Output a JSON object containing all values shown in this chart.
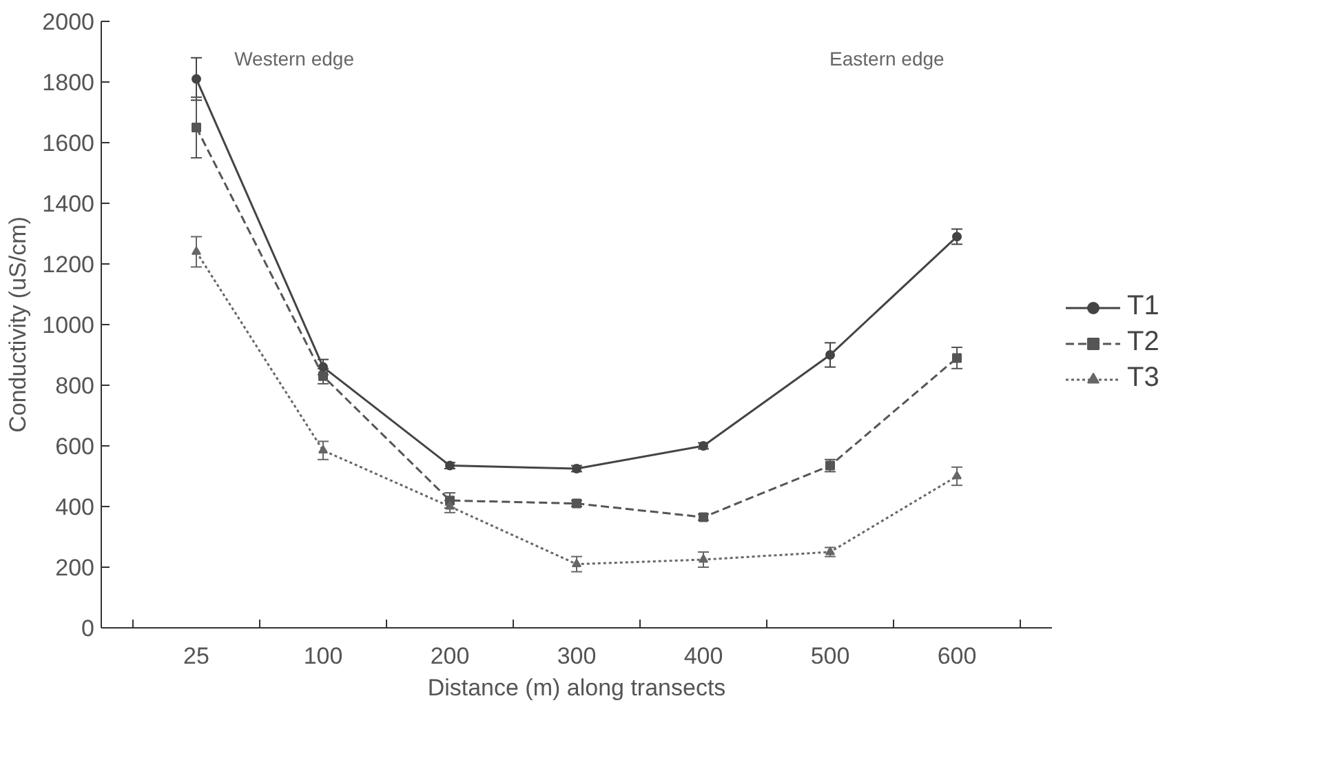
{
  "chart_data": {
    "type": "line",
    "xlabel": "Distance (m) along transects",
    "ylabel": "Conductivity (uS/cm)",
    "categories": [
      "25",
      "100",
      "200",
      "300",
      "400",
      "500",
      "600"
    ],
    "series": [
      {
        "name": "T1",
        "color": "#444444",
        "line_style": "solid",
        "marker": "circle",
        "values": [
          1810,
          860,
          535,
          525,
          600,
          900,
          1290
        ],
        "errors": [
          70,
          25,
          10,
          10,
          10,
          40,
          25
        ]
      },
      {
        "name": "T2",
        "color": "#555555",
        "line_style": "dashed",
        "marker": "square",
        "values": [
          1650,
          830,
          420,
          410,
          365,
          535,
          890
        ],
        "errors": [
          100,
          25,
          25,
          10,
          10,
          20,
          35
        ]
      },
      {
        "name": "T3",
        "color": "#666666",
        "line_style": "dotted",
        "marker": "triangle",
        "values": [
          1240,
          585,
          400,
          210,
          225,
          250,
          500
        ],
        "errors": [
          50,
          30,
          20,
          25,
          25,
          15,
          30
        ]
      }
    ],
    "ylim": [
      0,
      2000
    ],
    "yticks": [
      0,
      200,
      400,
      600,
      800,
      1000,
      1200,
      1400,
      1600,
      1800,
      2000
    ],
    "annotations": [
      "Western edge",
      "Eastern edge"
    ],
    "legend": "right",
    "grid": false
  }
}
